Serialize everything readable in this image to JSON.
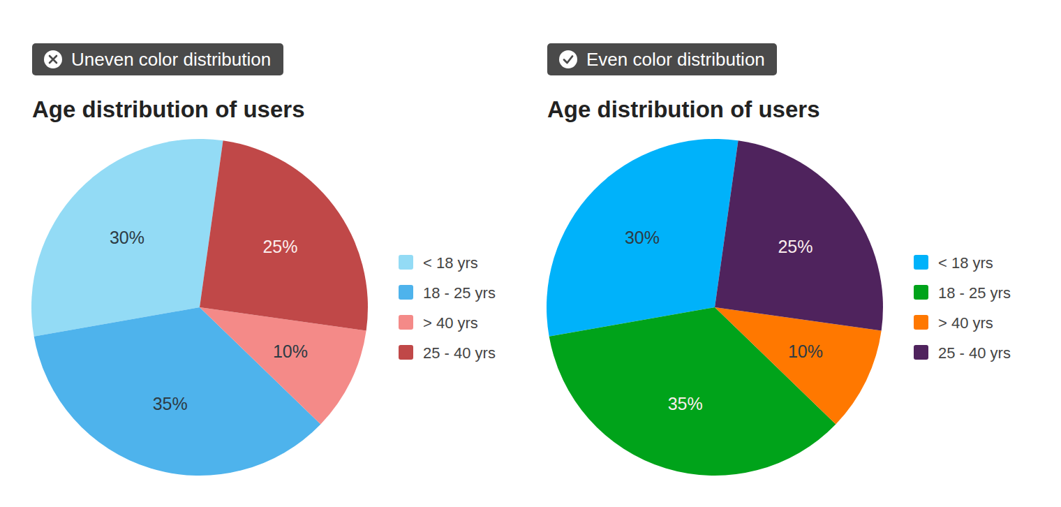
{
  "chart_data": [
    {
      "type": "pie",
      "title": "Age distribution of users",
      "annotations": [
        "Uneven color distribution"
      ],
      "categories": [
        "< 18 yrs",
        "18 - 25 yrs",
        "> 40 yrs",
        "25 - 40 yrs"
      ],
      "values": [
        30,
        35,
        10,
        25
      ],
      "value_labels": [
        "30%",
        "35%",
        "10%",
        "25%"
      ],
      "colors": [
        "#93dbf5",
        "#4eb3ec",
        "#f48a88",
        "#c04848"
      ],
      "data_labels": true,
      "legend": "right"
    },
    {
      "type": "pie",
      "title": "Age distribution of users",
      "annotations": [
        "Even color distribution"
      ],
      "categories": [
        "< 18 yrs",
        "18 - 25 yrs",
        "> 40 yrs",
        "25 - 40 yrs"
      ],
      "values": [
        30,
        35,
        10,
        25
      ],
      "value_labels": [
        "30%",
        "35%",
        "10%",
        "25%"
      ],
      "colors": [
        "#00b2fa",
        "#00a31a",
        "#ff7800",
        "#4f235d"
      ],
      "data_labels": true,
      "legend": "right"
    }
  ]
}
